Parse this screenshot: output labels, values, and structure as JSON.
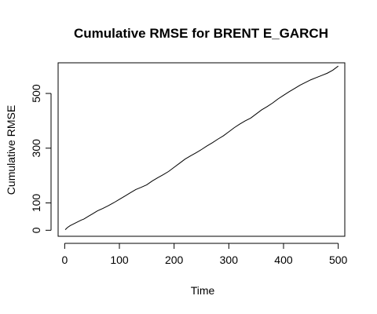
{
  "chart_data": {
    "type": "line",
    "title": "Cumulative RMSE for BRENT E_GARCH",
    "xlabel": "Time",
    "ylabel": "Cumulative RMSE",
    "xlim": [
      -12,
      512
    ],
    "ylim": [
      -22,
      612
    ],
    "xticks": [
      0,
      100,
      200,
      300,
      400,
      500
    ],
    "yticks": [
      0,
      100,
      300,
      500
    ],
    "grid": false,
    "legend": "none",
    "colors": {
      "line": "#000000",
      "axes": "#000000",
      "background": "#ffffff"
    },
    "series": [
      {
        "points": [
          [
            1,
            2
          ],
          [
            5,
            10
          ],
          [
            10,
            17
          ],
          [
            15,
            22
          ],
          [
            20,
            27
          ],
          [
            25,
            32
          ],
          [
            30,
            37
          ],
          [
            35,
            41
          ],
          [
            40,
            47
          ],
          [
            45,
            53
          ],
          [
            50,
            59
          ],
          [
            55,
            65
          ],
          [
            60,
            71
          ],
          [
            70,
            80
          ],
          [
            80,
            90
          ],
          [
            90,
            101
          ],
          [
            100,
            113
          ],
          [
            110,
            125
          ],
          [
            120,
            137
          ],
          [
            130,
            149
          ],
          [
            140,
            157
          ],
          [
            150,
            166
          ],
          [
            160,
            180
          ],
          [
            170,
            192
          ],
          [
            180,
            203
          ],
          [
            190,
            215
          ],
          [
            200,
            230
          ],
          [
            210,
            245
          ],
          [
            220,
            260
          ],
          [
            230,
            272
          ],
          [
            240,
            283
          ],
          [
            250,
            295
          ],
          [
            260,
            308
          ],
          [
            270,
            320
          ],
          [
            280,
            333
          ],
          [
            290,
            345
          ],
          [
            300,
            360
          ],
          [
            310,
            375
          ],
          [
            320,
            388
          ],
          [
            330,
            400
          ],
          [
            340,
            410
          ],
          [
            350,
            425
          ],
          [
            360,
            440
          ],
          [
            370,
            452
          ],
          [
            380,
            465
          ],
          [
            390,
            480
          ],
          [
            400,
            493
          ],
          [
            410,
            506
          ],
          [
            420,
            518
          ],
          [
            430,
            530
          ],
          [
            440,
            540
          ],
          [
            450,
            550
          ],
          [
            460,
            558
          ],
          [
            470,
            566
          ],
          [
            480,
            574
          ],
          [
            490,
            585
          ],
          [
            500,
            600
          ]
        ]
      }
    ]
  }
}
